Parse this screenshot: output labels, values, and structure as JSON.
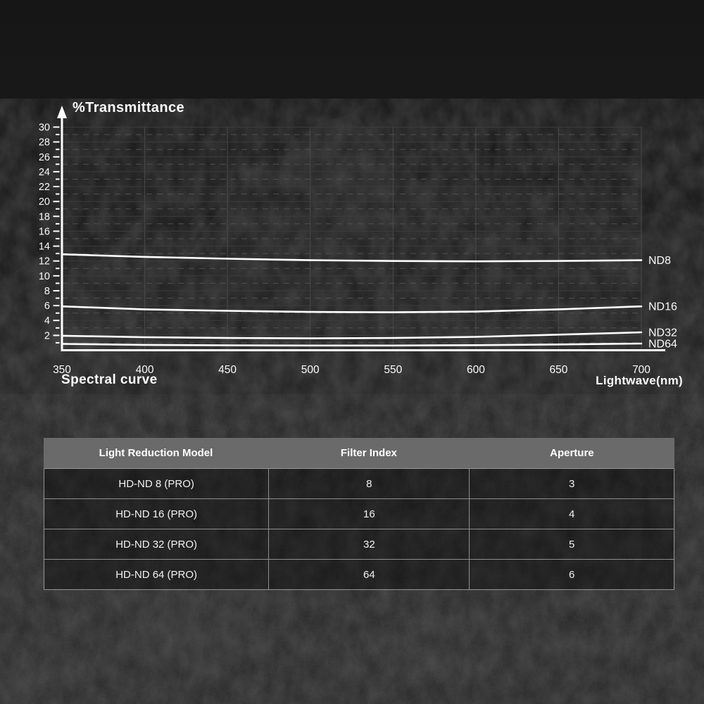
{
  "colors": {
    "background": "#181818",
    "curve": "#ffffff",
    "axis": "#ffffff",
    "grid_even": "#3c3c3c",
    "grid_odd": "#505050",
    "grid_vertical": "#4a4a4a",
    "header_bg": "#6a6a6a",
    "table_line": "rgba(200,200,200,0.65)",
    "text": "#fafafa"
  },
  "chart_data": {
    "type": "line",
    "title": "%Transmittance",
    "caption": "Spectral curve",
    "xlabel": "Lightwave(nm)",
    "ylabel": "",
    "x": [
      350,
      400,
      450,
      500,
      550,
      600,
      650,
      700
    ],
    "xlim": [
      350,
      700
    ],
    "ylim": [
      0,
      30
    ],
    "yticks": [
      2,
      4,
      6,
      8,
      10,
      12,
      14,
      16,
      18,
      20,
      22,
      24,
      26,
      28,
      30
    ],
    "grid": "horizontal solid at even values, dashed at odd values, vertical every 50nm",
    "legend_position": "right end-of-line labels",
    "series": [
      {
        "name": "ND8",
        "values": [
          12.9,
          12.55,
          12.3,
          12.1,
          12.0,
          11.95,
          12.0,
          12.1
        ]
      },
      {
        "name": "ND16",
        "values": [
          5.9,
          5.5,
          5.3,
          5.15,
          5.1,
          5.2,
          5.5,
          5.9
        ]
      },
      {
        "name": "ND32",
        "values": [
          1.95,
          1.75,
          1.65,
          1.6,
          1.65,
          1.8,
          2.1,
          2.4
        ]
      },
      {
        "name": "ND64",
        "values": [
          0.85,
          0.72,
          0.66,
          0.63,
          0.63,
          0.68,
          0.78,
          0.9
        ]
      }
    ]
  },
  "table": {
    "headers": [
      "Light Reduction Model",
      "Filter Index",
      "Aperture"
    ],
    "rows": [
      {
        "model": "HD-ND 8 (PRO)",
        "filter_index": "8",
        "aperture": "3"
      },
      {
        "model": "HD-ND 16 (PRO)",
        "filter_index": "16",
        "aperture": "4"
      },
      {
        "model": "HD-ND 32 (PRO)",
        "filter_index": "32",
        "aperture": "5"
      },
      {
        "model": "HD-ND 64 (PRO)",
        "filter_index": "64",
        "aperture": "6"
      }
    ]
  }
}
